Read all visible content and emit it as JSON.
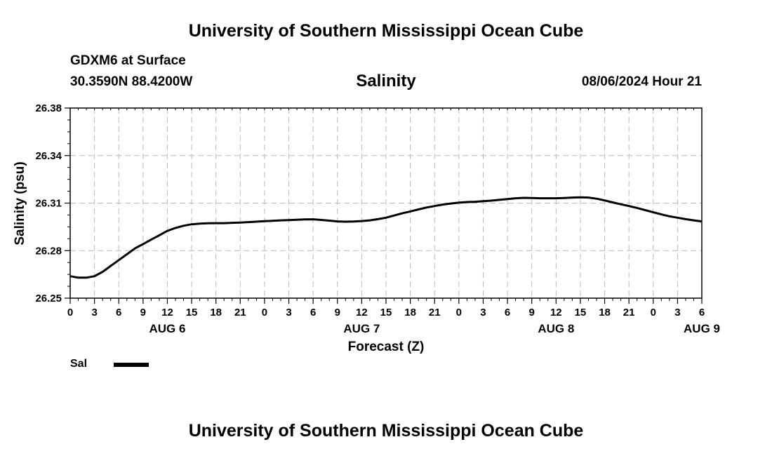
{
  "header": {
    "top_title": "University of Southern Mississippi Ocean Cube",
    "station": "GDXM6 at Surface",
    "coords": "30.3590N  88.4200W",
    "datetime": "08/06/2024 Hour 21",
    "bottom_title": "University of Southern Mississippi Ocean Cube"
  },
  "legend": {
    "label": "Sal"
  },
  "chart_data": {
    "type": "line",
    "title": "Salinity",
    "xlabel": "Forecast (Z)",
    "ylabel": "Salinity (psu)",
    "ylim": [
      26.25,
      26.38
    ],
    "xlim": [
      0,
      78
    ],
    "y_ticks": [
      "26.25",
      "26.28",
      "26.31",
      "26.34",
      "26.38"
    ],
    "x_tick_labels": [
      "0",
      "3",
      "6",
      "9",
      "12",
      "15",
      "18",
      "21",
      "0",
      "3",
      "6",
      "9",
      "12",
      "15",
      "18",
      "21",
      "0",
      "3",
      "6",
      "9",
      "12",
      "15",
      "18",
      "21",
      "0",
      "3",
      "6"
    ],
    "x_minor_step_hours": 1,
    "date_labels": [
      {
        "label": "AUG 6",
        "hour": 12
      },
      {
        "label": "AUG 7",
        "hour": 36
      },
      {
        "label": "AUG 8",
        "hour": 60
      },
      {
        "label": "AUG 9",
        "hour": 78
      }
    ],
    "grid": true,
    "legend_position": "bottom-left",
    "series": [
      {
        "name": "Sal",
        "color": "#000000",
        "x": [
          0,
          1,
          2,
          3,
          4,
          5,
          6,
          7,
          8,
          9,
          10,
          11,
          12,
          13,
          14,
          15,
          16,
          17,
          18,
          19,
          20,
          21,
          22,
          23,
          24,
          25,
          26,
          27,
          28,
          29,
          30,
          31,
          32,
          33,
          34,
          35,
          36,
          37,
          38,
          39,
          40,
          41,
          42,
          43,
          44,
          45,
          46,
          47,
          48,
          49,
          50,
          51,
          52,
          53,
          54,
          55,
          56,
          57,
          58,
          59,
          60,
          61,
          62,
          63,
          64,
          65,
          66,
          67,
          68,
          69,
          70,
          71,
          72,
          73,
          74,
          75,
          76,
          77,
          78
        ],
        "y": [
          26.265,
          26.264,
          26.264,
          26.265,
          26.268,
          26.272,
          26.276,
          26.28,
          26.284,
          26.287,
          26.29,
          26.293,
          26.296,
          26.298,
          26.2995,
          26.3005,
          26.301,
          26.3012,
          26.3013,
          26.3013,
          26.3015,
          26.3017,
          26.302,
          26.3023,
          26.3026,
          26.3029,
          26.3032,
          26.3034,
          26.3036,
          26.3038,
          26.3039,
          26.3035,
          26.303,
          26.3025,
          26.3023,
          26.3024,
          26.3027,
          26.3032,
          26.304,
          26.305,
          26.3065,
          26.308,
          26.3093,
          26.3107,
          26.312,
          26.313,
          26.314,
          26.3147,
          26.3153,
          26.3157,
          26.3159,
          26.3163,
          26.3167,
          26.3172,
          26.3178,
          26.3183,
          26.3186,
          26.3185,
          26.3183,
          26.3183,
          26.3183,
          26.3185,
          26.3188,
          26.319,
          26.3188,
          26.318,
          26.3168,
          26.3155,
          26.3142,
          26.313,
          26.3117,
          26.3102,
          26.3087,
          26.3073,
          26.306,
          26.305,
          26.304,
          26.3032,
          26.3025
        ]
      }
    ]
  }
}
